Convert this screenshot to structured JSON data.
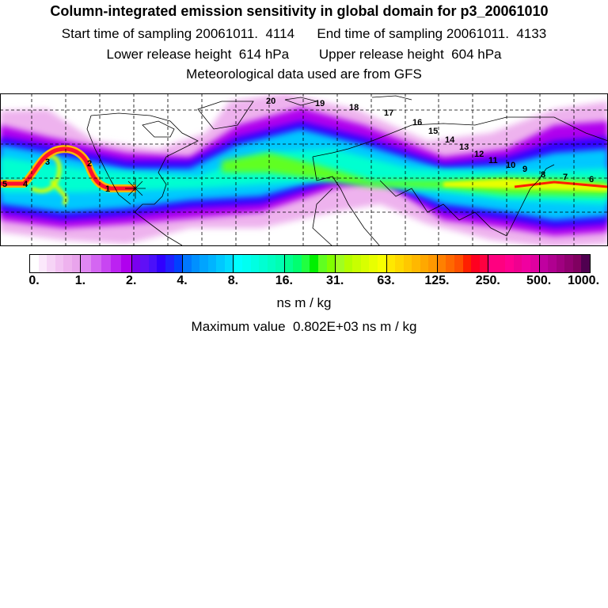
{
  "header": {
    "title": "Column-integrated emission sensitivity in global domain for p3_20061010",
    "sampling": "Start time of sampling 20061011.  4114      End time of sampling 20061011.  4133",
    "release": "Lower release height  614 hPa        Upper release height  604 hPa",
    "met": "Meteorological data used are from GFS"
  },
  "map": {
    "trajectory_labels": [
      "1",
      "2",
      "3",
      "4",
      "5",
      "6",
      "7",
      "8",
      "9",
      "10",
      "11",
      "12",
      "13",
      "14",
      "15",
      "16",
      "17",
      "18",
      "19",
      "20"
    ],
    "release_marker": "star-icon"
  },
  "colorbar": {
    "tick_labels": [
      "0.",
      "1.",
      "2.",
      "4.",
      "8.",
      "16.",
      "31.",
      "63.",
      "125.",
      "250.",
      "500.",
      "1000."
    ],
    "segments": [
      [
        "#ffffff",
        "#fbe8fb",
        "#f6d4f6",
        "#f2c2f2",
        "#eeb2ee",
        "#e9a4ec"
      ],
      [
        "#e088f2",
        "#d466f2",
        "#c846f2",
        "#bc22f2",
        "#b000ee"
      ],
      [
        "#7a00ee",
        "#6010f6",
        "#4a10fa",
        "#3000ff",
        "#2020ff",
        "#0040ff"
      ],
      [
        "#0078ff",
        "#0090ff",
        "#00a4ff",
        "#00b4ff",
        "#00c8ff",
        "#00dcff"
      ],
      [
        "#00ffff",
        "#00fff2",
        "#00ffe2",
        "#00ffd2",
        "#00ffc2",
        "#00ffb2"
      ],
      [
        "#00ff90",
        "#00ff70",
        "#20ff40",
        "#00f000",
        "#60ff20",
        "#80ff00"
      ],
      [
        "#a0ff20",
        "#b4ff00",
        "#c8ff00",
        "#d8ff00",
        "#e8ff00",
        "#f8ff00"
      ],
      [
        "#ffe800",
        "#ffd800",
        "#ffc800",
        "#ffb800",
        "#ffa800",
        "#ff9800"
      ],
      [
        "#ff8000",
        "#ff6800",
        "#ff5000",
        "#ff2000",
        "#ff0020",
        "#ff0040"
      ],
      [
        "#ff0080",
        "#ff0080",
        "#ff0090",
        "#f00090",
        "#f000a0",
        "#e000a0"
      ],
      [
        "#c000a0",
        "#b00090",
        "#a00080",
        "#900070",
        "#800060",
        "#500050"
      ]
    ],
    "units": "ns m / kg",
    "max_value": "Maximum value  0.802E+03 ns m / kg"
  }
}
